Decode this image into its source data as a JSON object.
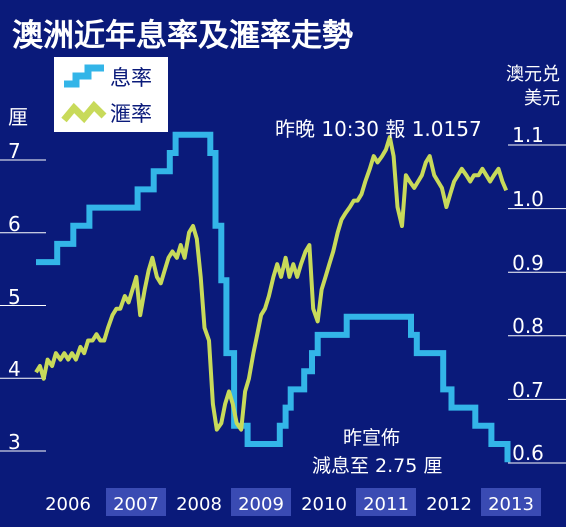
{
  "chart_data": {
    "type": "line",
    "title": "澳洲近年息率及滙率走勢",
    "legend": [
      {
        "label": "息率",
        "color": "#33b5e8"
      },
      {
        "label": "滙率",
        "color": "#c8da5a"
      }
    ],
    "left_axis": {
      "label": "厘",
      "ticks": [
        "7",
        "6",
        "5",
        "4",
        "3"
      ],
      "range": [
        2.8,
        7.6
      ]
    },
    "right_axis": {
      "label_line1": "澳元兑",
      "label_line2": "美元",
      "ticks": [
        "1.1",
        "1.0",
        "0.9",
        "0.8",
        "0.7",
        "0.6"
      ],
      "range": [
        0.56,
        1.15
      ]
    },
    "x_axis": {
      "ticks": [
        "2006",
        "2007",
        "2008",
        "2009",
        "2010",
        "2011",
        "2012",
        "2013"
      ],
      "range": [
        2006.0,
        2013.4
      ]
    },
    "annotations": {
      "exchange_note": "昨晚 10:30 報 1.0157",
      "rate_note_line1": "昨宣佈",
      "rate_note_line2": "減息至 2.75 厘"
    },
    "series": [
      {
        "name": "息率",
        "axis": "left",
        "step": true,
        "points": [
          [
            2006.0,
            5.5
          ],
          [
            2006.33,
            5.75
          ],
          [
            2006.58,
            6.0
          ],
          [
            2006.83,
            6.25
          ],
          [
            2007.58,
            6.5
          ],
          [
            2007.83,
            6.75
          ],
          [
            2008.08,
            7.0
          ],
          [
            2008.17,
            7.25
          ],
          [
            2008.71,
            7.0
          ],
          [
            2008.79,
            6.0
          ],
          [
            2008.88,
            5.25
          ],
          [
            2008.96,
            4.25
          ],
          [
            2009.08,
            3.25
          ],
          [
            2009.29,
            3.0
          ],
          [
            2009.79,
            3.25
          ],
          [
            2009.88,
            3.5
          ],
          [
            2009.96,
            3.75
          ],
          [
            2010.17,
            4.0
          ],
          [
            2010.29,
            4.25
          ],
          [
            2010.38,
            4.5
          ],
          [
            2010.83,
            4.75
          ],
          [
            2011.83,
            4.5
          ],
          [
            2011.92,
            4.25
          ],
          [
            2012.33,
            3.75
          ],
          [
            2012.46,
            3.5
          ],
          [
            2012.83,
            3.25
          ],
          [
            2013.08,
            3.0
          ],
          [
            2013.33,
            2.75
          ]
        ]
      },
      {
        "name": "滙率",
        "axis": "right",
        "points": [
          [
            2006.0,
            0.73
          ],
          [
            2006.06,
            0.74
          ],
          [
            2006.12,
            0.72
          ],
          [
            2006.18,
            0.75
          ],
          [
            2006.25,
            0.74
          ],
          [
            2006.31,
            0.76
          ],
          [
            2006.38,
            0.75
          ],
          [
            2006.44,
            0.76
          ],
          [
            2006.5,
            0.75
          ],
          [
            2006.56,
            0.76
          ],
          [
            2006.62,
            0.75
          ],
          [
            2006.69,
            0.77
          ],
          [
            2006.75,
            0.76
          ],
          [
            2006.81,
            0.78
          ],
          [
            2006.88,
            0.78
          ],
          [
            2006.94,
            0.79
          ],
          [
            2007.0,
            0.78
          ],
          [
            2007.06,
            0.78
          ],
          [
            2007.12,
            0.8
          ],
          [
            2007.19,
            0.82
          ],
          [
            2007.25,
            0.83
          ],
          [
            2007.31,
            0.83
          ],
          [
            2007.38,
            0.85
          ],
          [
            2007.44,
            0.84
          ],
          [
            2007.5,
            0.86
          ],
          [
            2007.56,
            0.88
          ],
          [
            2007.62,
            0.82
          ],
          [
            2007.69,
            0.86
          ],
          [
            2007.75,
            0.89
          ],
          [
            2007.81,
            0.91
          ],
          [
            2007.88,
            0.88
          ],
          [
            2007.94,
            0.87
          ],
          [
            2008.0,
            0.89
          ],
          [
            2008.06,
            0.91
          ],
          [
            2008.12,
            0.92
          ],
          [
            2008.19,
            0.91
          ],
          [
            2008.25,
            0.93
          ],
          [
            2008.31,
            0.91
          ],
          [
            2008.38,
            0.95
          ],
          [
            2008.44,
            0.96
          ],
          [
            2008.5,
            0.94
          ],
          [
            2008.56,
            0.88
          ],
          [
            2008.62,
            0.8
          ],
          [
            2008.69,
            0.78
          ],
          [
            2008.75,
            0.68
          ],
          [
            2008.81,
            0.64
          ],
          [
            2008.88,
            0.65
          ],
          [
            2008.94,
            0.68
          ],
          [
            2009.0,
            0.7
          ],
          [
            2009.06,
            0.68
          ],
          [
            2009.12,
            0.65
          ],
          [
            2009.19,
            0.64
          ],
          [
            2009.25,
            0.7
          ],
          [
            2009.31,
            0.72
          ],
          [
            2009.38,
            0.76
          ],
          [
            2009.44,
            0.79
          ],
          [
            2009.5,
            0.82
          ],
          [
            2009.56,
            0.83
          ],
          [
            2009.62,
            0.85
          ],
          [
            2009.69,
            0.88
          ],
          [
            2009.75,
            0.9
          ],
          [
            2009.81,
            0.88
          ],
          [
            2009.88,
            0.91
          ],
          [
            2009.94,
            0.88
          ],
          [
            2010.0,
            0.9
          ],
          [
            2010.06,
            0.88
          ],
          [
            2010.12,
            0.9
          ],
          [
            2010.19,
            0.92
          ],
          [
            2010.25,
            0.93
          ],
          [
            2010.31,
            0.83
          ],
          [
            2010.38,
            0.81
          ],
          [
            2010.44,
            0.86
          ],
          [
            2010.5,
            0.88
          ],
          [
            2010.56,
            0.9
          ],
          [
            2010.62,
            0.92
          ],
          [
            2010.69,
            0.95
          ],
          [
            2010.75,
            0.97
          ],
          [
            2010.81,
            0.98
          ],
          [
            2010.88,
            0.99
          ],
          [
            2010.94,
            1.0
          ],
          [
            2011.0,
            1.0
          ],
          [
            2011.06,
            1.01
          ],
          [
            2011.12,
            1.03
          ],
          [
            2011.19,
            1.05
          ],
          [
            2011.25,
            1.07
          ],
          [
            2011.31,
            1.06
          ],
          [
            2011.38,
            1.07
          ],
          [
            2011.44,
            1.08
          ],
          [
            2011.5,
            1.1
          ],
          [
            2011.56,
            1.07
          ],
          [
            2011.62,
            0.99
          ],
          [
            2011.69,
            0.96
          ],
          [
            2011.75,
            1.04
          ],
          [
            2011.81,
            1.03
          ],
          [
            2011.88,
            1.02
          ],
          [
            2011.94,
            1.03
          ],
          [
            2012.0,
            1.04
          ],
          [
            2012.06,
            1.06
          ],
          [
            2012.12,
            1.07
          ],
          [
            2012.19,
            1.04
          ],
          [
            2012.25,
            1.03
          ],
          [
            2012.31,
            1.02
          ],
          [
            2012.38,
            0.99
          ],
          [
            2012.44,
            1.01
          ],
          [
            2012.5,
            1.03
          ],
          [
            2012.56,
            1.04
          ],
          [
            2012.62,
            1.05
          ],
          [
            2012.69,
            1.04
          ],
          [
            2012.75,
            1.03
          ],
          [
            2012.81,
            1.04
          ],
          [
            2012.88,
            1.04
          ],
          [
            2012.94,
            1.05
          ],
          [
            2013.0,
            1.04
          ],
          [
            2013.06,
            1.03
          ],
          [
            2013.12,
            1.04
          ],
          [
            2013.19,
            1.05
          ],
          [
            2013.25,
            1.03
          ],
          [
            2013.31,
            1.016
          ]
        ]
      }
    ]
  }
}
